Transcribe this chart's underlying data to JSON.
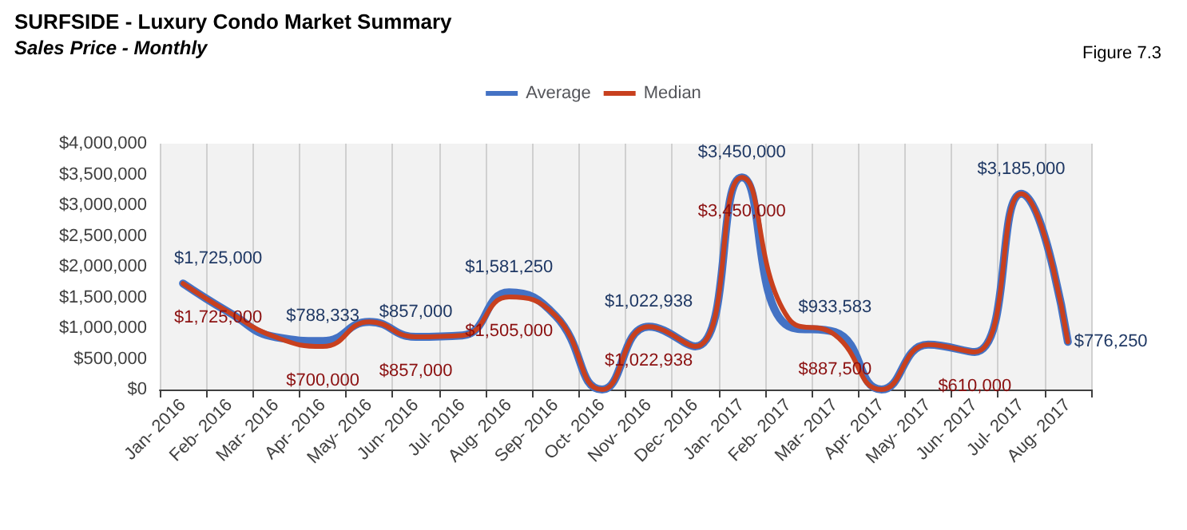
{
  "chart_data": {
    "type": "line",
    "title": "SURFSIDE - Luxury Condo Market Summary",
    "subtitle": "Sales Price - Monthly",
    "annotations": [
      "Figure 7.3"
    ],
    "categories": [
      "Jan- 2016",
      "Feb- 2016",
      "Mar- 2016",
      "Apr- 2016",
      "May- 2016",
      "Jun- 2016",
      "Jul- 2016",
      "Aug- 2016",
      "Sep- 2016",
      "Oct- 2016",
      "Nov- 2016",
      "Dec- 2016",
      "Jan- 2017",
      "Feb- 2017",
      "Mar- 2017",
      "Apr- 2017",
      "May- 2017",
      "Jun- 2017",
      "Jul- 2017",
      "Aug- 2017"
    ],
    "series": [
      {
        "name": "Average",
        "color": "#4472c4",
        "values": [
          1725000,
          1250000,
          850000,
          788333,
          1100000,
          857000,
          880000,
          1581250,
          1200000,
          0,
          1022938,
          700000,
          3450000,
          1030000,
          933583,
          0,
          730000,
          610000,
          3185000,
          776250
        ],
        "value_labels": [
          "$1,725,000",
          null,
          null,
          "$788,333",
          null,
          "$857,000",
          null,
          "$1,581,250",
          null,
          null,
          "$1,022,938",
          null,
          "$3,450,000",
          null,
          "$933,583",
          null,
          null,
          null,
          "$3,185,000",
          "$776,250"
        ]
      },
      {
        "name": "Median",
        "color": "#c8401e",
        "values": [
          1725000,
          1250000,
          850000,
          700000,
          1100000,
          857000,
          880000,
          1505000,
          1200000,
          0,
          1022938,
          700000,
          3450000,
          1160000,
          887500,
          0,
          730000,
          610000,
          3185000,
          776250
        ],
        "value_labels": [
          "$1,725,000",
          null,
          null,
          "$700,000",
          null,
          "$857,000",
          null,
          "$1,505,000",
          null,
          null,
          "$1,022,938",
          null,
          "$3,450,000",
          null,
          "$887,500",
          null,
          null,
          "$610,000",
          null,
          null
        ]
      }
    ],
    "ylim": [
      0,
      4000000
    ],
    "yticks": [
      {
        "value": 0,
        "label": "$0"
      },
      {
        "value": 500000,
        "label": "$500,000"
      },
      {
        "value": 1000000,
        "label": "$1,000,000"
      },
      {
        "value": 1500000,
        "label": "$1,500,000"
      },
      {
        "value": 2000000,
        "label": "$2,000,000"
      },
      {
        "value": 2500000,
        "label": "$2,500,000"
      },
      {
        "value": 3000000,
        "label": "$3,000,000"
      },
      {
        "value": 3500000,
        "label": "$3,500,000"
      },
      {
        "value": 4000000,
        "label": "$4,000,000"
      }
    ],
    "grid": "x",
    "legend": "top",
    "marker": "none"
  }
}
